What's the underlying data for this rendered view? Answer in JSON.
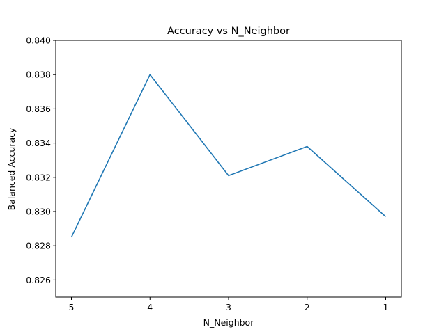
{
  "chart_data": {
    "type": "line",
    "title": "Accuracy vs N_Neighbor",
    "xlabel": "N_Neighbor",
    "ylabel": "Balanced Accuracy",
    "categories": [
      "5",
      "4",
      "3",
      "2",
      "1"
    ],
    "series": [
      {
        "values": [
          0.8285,
          0.838,
          0.8321,
          0.8338,
          0.8297
        ],
        "color": "#1f77b4"
      }
    ],
    "ylim": [
      0.825,
      0.84
    ],
    "yticks": [
      "0.826",
      "0.828",
      "0.830",
      "0.832",
      "0.834",
      "0.836",
      "0.838",
      "0.840"
    ],
    "grid": false,
    "legend": "none"
  }
}
